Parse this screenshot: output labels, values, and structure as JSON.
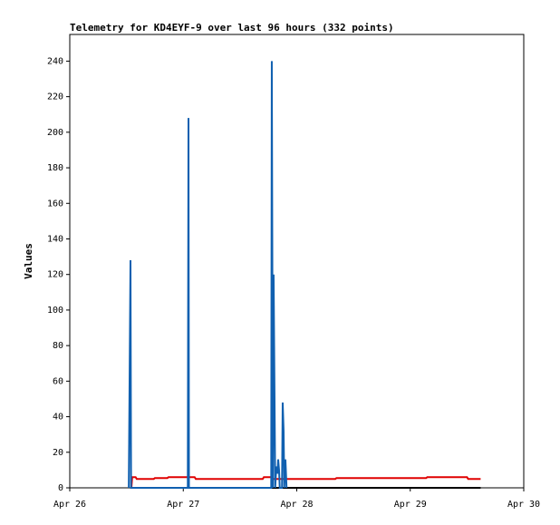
{
  "chart_data": {
    "type": "line",
    "title": "Telemetry for KD4EYF-9 over last 96 hours (332 points)",
    "y_label": "Values",
    "xlim": [
      0,
      4
    ],
    "xticks": [
      {
        "value": 0,
        "label": "Apr 26"
      },
      {
        "value": 1,
        "label": "Apr 27"
      },
      {
        "value": 2,
        "label": "Apr 28"
      },
      {
        "value": 3,
        "label": "Apr 29"
      },
      {
        "value": 4,
        "label": "Apr 30"
      }
    ],
    "ylim": [
      0,
      255
    ],
    "yticks": [
      0,
      20,
      40,
      60,
      80,
      100,
      120,
      140,
      160,
      180,
      200,
      220,
      240
    ],
    "series": [
      {
        "color": "#000000",
        "x": [
          0.54,
          3.62
        ],
        "values": [
          0,
          0
        ]
      },
      {
        "color": "#e00000",
        "x": [
          0.543,
          0.55,
          0.58,
          0.59,
          0.74,
          0.75,
          0.86,
          0.87,
          1.1,
          1.11,
          1.7,
          1.71,
          1.78,
          1.79,
          2.34,
          2.35,
          3.14,
          3.15,
          3.5,
          3.51,
          3.62
        ],
        "values": [
          0,
          6,
          6,
          5,
          5,
          5.5,
          5.5,
          6,
          6,
          5,
          5,
          6,
          6,
          5,
          5,
          5.5,
          5.5,
          6,
          6,
          5,
          5
        ]
      },
      {
        "color": "#1060b0",
        "x": [
          0.52,
          0.535,
          0.54,
          1.04,
          1.046,
          1.05,
          1.775,
          1.78,
          1.79,
          1.796,
          1.81,
          1.82,
          1.83,
          1.836,
          1.844,
          1.85,
          1.87,
          1.876,
          1.884,
          1.89,
          1.9,
          1.91
        ],
        "values": [
          0,
          128,
          0,
          0,
          208,
          0,
          0,
          240,
          0,
          120,
          0,
          12,
          8,
          16,
          10,
          0,
          0,
          48,
          32,
          0,
          16,
          0
        ]
      }
    ]
  }
}
